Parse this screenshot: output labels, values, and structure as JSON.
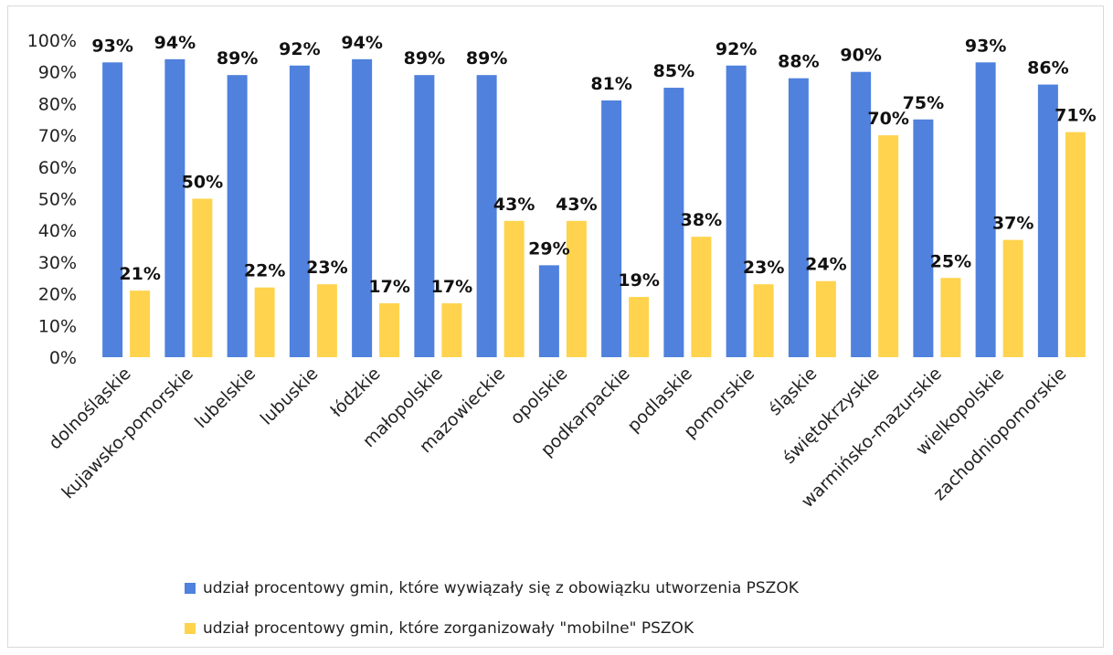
{
  "chart_data": {
    "type": "bar",
    "categories": [
      "dolnośląskie",
      "kujawsko-pomorskie",
      "lubelskie",
      "lubuskie",
      "łódzkie",
      "małopolskie",
      "mazowieckie",
      "opolskie",
      "podkarpackie",
      "podlaskie",
      "pomorskie",
      "śląskie",
      "świętokrzyskie",
      "warmińsko-mazurskie",
      "wielkopolskie",
      "zachodniopomorskie"
    ],
    "series": [
      {
        "name": "udział procentowy gmin, które wywiązały się z obowiązku utworzenia PSZOK",
        "color": "#4f81dd",
        "values": [
          93,
          94,
          89,
          92,
          94,
          89,
          89,
          29,
          81,
          85,
          92,
          88,
          90,
          75,
          93,
          86
        ],
        "labels": [
          "93%",
          "94%",
          "89%",
          "92%",
          "94%",
          "89%",
          "89%",
          "29%",
          "81%",
          "85%",
          "92%",
          "88%",
          "90%",
          "75%",
          "93%",
          "86%"
        ]
      },
      {
        "name": "udział procentowy gmin, które zorganizowały \"mobilne\" PSZOK",
        "color": "#ffd34d",
        "values": [
          21,
          50,
          22,
          23,
          17,
          17,
          43,
          43,
          19,
          38,
          23,
          24,
          70,
          25,
          37,
          71
        ],
        "labels": [
          "21%",
          "50%",
          "22%",
          "23%",
          "17%",
          "17%",
          "43%",
          "43%",
          "19%",
          "38%",
          "23%",
          "24%",
          "70%",
          "25%",
          "37%",
          "71%"
        ]
      }
    ],
    "yticks": [
      "0%",
      "10%",
      "20%",
      "30%",
      "40%",
      "50%",
      "60%",
      "70%",
      "80%",
      "90%",
      "100%"
    ],
    "ylim": [
      0,
      100
    ],
    "title": "",
    "xlabel": "",
    "ylabel": "",
    "grid": false,
    "legend_position": "bottom"
  }
}
